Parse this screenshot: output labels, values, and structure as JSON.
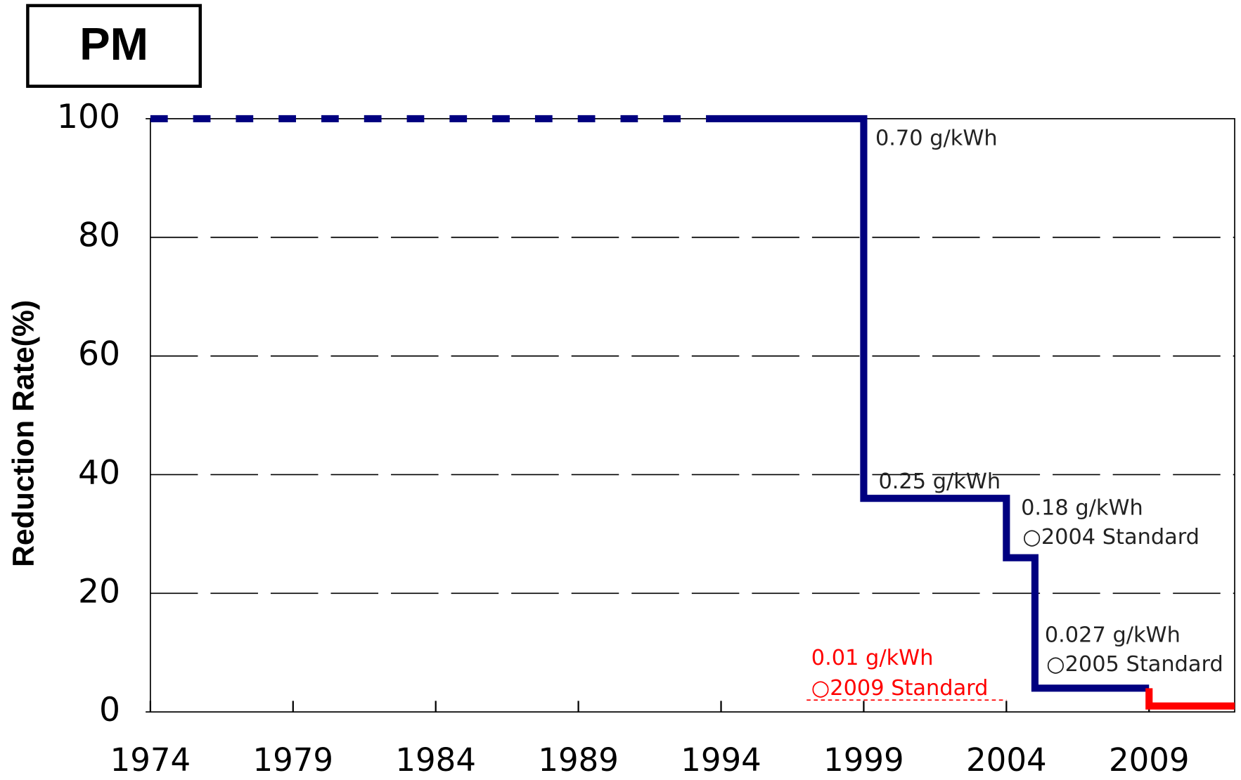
{
  "chart_data": {
    "type": "line",
    "title": "PM",
    "ylabel": "Reduction Rate(%)",
    "xlim": [
      1974,
      2012
    ],
    "xticks": [
      1974,
      1979,
      1984,
      1989,
      1994,
      1999,
      2004,
      2009
    ],
    "ylim": [
      0,
      100
    ],
    "yticks": [
      0,
      20,
      40,
      60,
      80,
      100
    ],
    "grid": true,
    "series": [
      {
        "color": "#000080",
        "style": "dashed",
        "width": 9,
        "x": [
          1974,
          1994
        ],
        "values": [
          100,
          100
        ]
      },
      {
        "color": "#000080",
        "style": "solid",
        "width": 9,
        "x": [
          1994,
          1999,
          1999,
          2004,
          2004,
          2005,
          2005,
          2009
        ],
        "values": [
          100,
          100,
          36,
          36,
          26,
          26,
          4,
          4
        ]
      },
      {
        "color": "#ff0000",
        "style": "solid",
        "width": 9,
        "x": [
          2009,
          2009,
          2012
        ],
        "values": [
          4,
          1,
          1
        ]
      },
      {
        "color": "#ff0000",
        "style": "thin-dashed",
        "width": 1.5,
        "x": [
          1997,
          2004
        ],
        "values": [
          2,
          2
        ]
      }
    ],
    "annotations": [
      {
        "text": "0.70 g/kWh",
        "color": "#222222"
      },
      {
        "text": "0.25 g/kWh",
        "color": "#222222"
      },
      {
        "text": "0.18 g/kWh",
        "color": "#222222"
      },
      {
        "text": "○2004 Standard",
        "color": "#222222"
      },
      {
        "text": "0.027 g/kWh",
        "color": "#222222"
      },
      {
        "text": "○2005 Standard",
        "color": "#222222"
      },
      {
        "text": "0.01 g/kWh",
        "color": "#ff0000"
      },
      {
        "text": "○2009 Standard",
        "color": "#ff0000"
      }
    ]
  }
}
